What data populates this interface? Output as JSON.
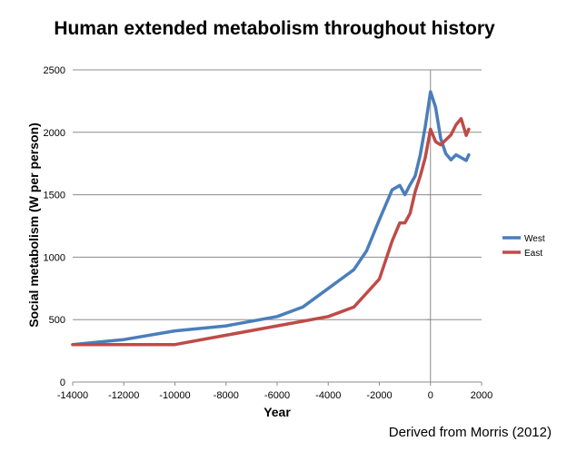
{
  "chart_data": {
    "type": "line",
    "title": "Human extended metabolism throughout history",
    "xlabel": "Year",
    "ylabel": "Social metabolism (W per person)",
    "xlim": [
      -14000,
      2000
    ],
    "ylim": [
      0,
      2500
    ],
    "x_ticks": [
      -14000,
      -12000,
      -10000,
      -8000,
      -6000,
      -4000,
      -2000,
      0,
      2000
    ],
    "y_ticks": [
      0,
      500,
      1000,
      1500,
      2000,
      2500
    ],
    "grid": "horizontal",
    "legend_position": "right",
    "series": [
      {
        "name": "West",
        "color": "#4a7ebb",
        "points": [
          [
            -14000,
            300
          ],
          [
            -12000,
            340
          ],
          [
            -10000,
            410
          ],
          [
            -8000,
            450
          ],
          [
            -6000,
            525
          ],
          [
            -5000,
            600
          ],
          [
            -4000,
            750
          ],
          [
            -3000,
            900
          ],
          [
            -2500,
            1050
          ],
          [
            -2000,
            1300
          ],
          [
            -1500,
            1540
          ],
          [
            -1200,
            1575
          ],
          [
            -1000,
            1500
          ],
          [
            -800,
            1580
          ],
          [
            -600,
            1650
          ],
          [
            -400,
            1820
          ],
          [
            -200,
            2050
          ],
          [
            0,
            2325
          ],
          [
            200,
            2200
          ],
          [
            400,
            1950
          ],
          [
            600,
            1830
          ],
          [
            800,
            1780
          ],
          [
            1000,
            1820
          ],
          [
            1400,
            1775
          ],
          [
            1500,
            1820
          ]
        ]
      },
      {
        "name": "East",
        "color": "#be4b48",
        "points": [
          [
            -14000,
            300
          ],
          [
            -10000,
            300
          ],
          [
            -8000,
            375
          ],
          [
            -6000,
            450
          ],
          [
            -4000,
            525
          ],
          [
            -3000,
            600
          ],
          [
            -2000,
            825
          ],
          [
            -1500,
            1130
          ],
          [
            -1200,
            1275
          ],
          [
            -1000,
            1275
          ],
          [
            -800,
            1350
          ],
          [
            -600,
            1525
          ],
          [
            -400,
            1650
          ],
          [
            -200,
            1800
          ],
          [
            0,
            2025
          ],
          [
            200,
            1925
          ],
          [
            400,
            1900
          ],
          [
            800,
            1980
          ],
          [
            1000,
            2060
          ],
          [
            1200,
            2110
          ],
          [
            1400,
            1975
          ],
          [
            1500,
            2025
          ]
        ]
      }
    ],
    "annotation": "Derived from Morris (2012)"
  }
}
